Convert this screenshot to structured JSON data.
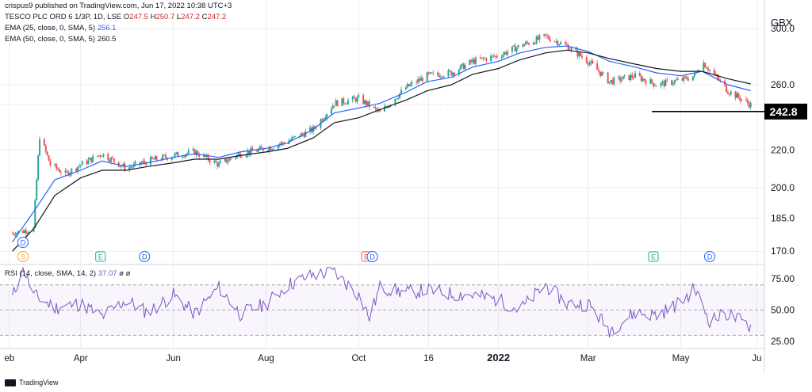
{
  "header": {
    "publish_line": "crispus9 published on TradingView.com, Jun 17, 2022 10:38 UTC+3",
    "symbol": "TESCO PLC ORD 6 1/3P, 1D, LSE",
    "ohlc": {
      "o_label": "O",
      "o": "247.5",
      "h_label": "H",
      "h": "250.7",
      "l_label": "L",
      "l": "247.2",
      "c_label": "C",
      "c": "247.2"
    },
    "ema25_label": "EMA (25, close, 0, SMA, 5)",
    "ema25_value": "256.1",
    "ema50_label": "EMA (50, close, 0, SMA, 5)",
    "ema50_value": "260.5",
    "rsi_label": "RSI (14, close, SMA, 14, 2)",
    "rsi_value": "37.07",
    "rsi_extra": "ø ø"
  },
  "currency": "GBX",
  "watermark": "TradingView",
  "colors": {
    "up": "#26a69a",
    "down": "#ef5350",
    "ema25": "#2962ff",
    "ema50": "#131722",
    "rsi": "#7e57c2",
    "grid": "#e0e3eb",
    "support": "#000000"
  },
  "events": {
    "split_label": "S",
    "earnings_label": "E",
    "dividend_label": "D"
  },
  "chart_data": [
    {
      "type": "line",
      "title": "TESCO PLC ORD 6 1/3P, 1D, LSE",
      "xlabel": "",
      "ylabel": "GBX",
      "ylim": [
        165,
        305
      ],
      "y_scale": "log",
      "y_ticks": [
        "300.0",
        "260.0",
        "220.0",
        "200.0",
        "185.0",
        "170.0"
      ],
      "x_ticks": [
        "eb",
        "Apr",
        "Jun",
        "Aug",
        "Oct",
        "16",
        "2022",
        "Mar",
        "May",
        "Ju"
      ],
      "price_line_label": "242.8",
      "series": [
        {
          "kind": "price",
          "x": [
            "2021-02-15",
            "2021-03-01",
            "2021-03-05",
            "2021-03-12",
            "2021-03-22",
            "2021-04-01",
            "2021-04-15",
            "2021-05-01",
            "2021-05-15",
            "2021-06-01",
            "2021-06-15",
            "2021-07-01",
            "2021-07-15",
            "2021-08-01",
            "2021-08-15",
            "2021-09-01",
            "2021-09-15",
            "2021-10-01",
            "2021-10-15",
            "2021-11-01",
            "2021-11-15",
            "2021-12-01",
            "2021-12-15",
            "2022-01-01",
            "2022-01-15",
            "2022-02-01",
            "2022-02-15",
            "2022-03-01",
            "2022-03-15",
            "2022-04-01",
            "2022-04-15",
            "2022-05-01",
            "2022-05-10",
            "2022-05-15",
            "2022-06-01",
            "2022-06-16"
          ],
          "y": [
            178,
            180,
            228,
            212,
            207,
            212,
            218,
            210,
            214,
            217,
            219,
            212,
            218,
            221,
            225,
            232,
            248,
            251,
            242,
            258,
            266,
            268,
            276,
            280,
            287,
            294,
            287,
            276,
            262,
            266,
            260,
            263,
            266,
            276,
            256,
            247
          ]
        },
        {
          "kind": "ema",
          "name": "EMA (25, close, 0, SMA, 5)",
          "x": [
            "2021-02-15",
            "2021-03-01",
            "2021-03-15",
            "2021-04-01",
            "2021-04-15",
            "2021-05-01",
            "2021-05-15",
            "2021-06-01",
            "2021-06-15",
            "2021-07-01",
            "2021-07-15",
            "2021-08-01",
            "2021-08-15",
            "2021-09-01",
            "2021-09-15",
            "2021-10-01",
            "2021-10-15",
            "2021-11-01",
            "2021-11-15",
            "2021-12-01",
            "2021-12-15",
            "2022-01-01",
            "2022-01-15",
            "2022-02-01",
            "2022-02-15",
            "2022-03-01",
            "2022-03-15",
            "2022-04-01",
            "2022-04-15",
            "2022-05-01",
            "2022-05-15",
            "2022-06-01",
            "2022-06-16"
          ],
          "y": [
            174,
            188,
            204,
            209,
            214,
            211,
            213,
            216,
            218,
            216,
            219,
            221,
            224,
            232,
            242,
            245,
            248,
            255,
            262,
            265,
            272,
            276,
            282,
            286,
            287,
            283,
            276,
            272,
            268,
            266,
            269,
            260,
            256.1
          ]
        },
        {
          "kind": "ema",
          "name": "EMA (50, close, 0, SMA, 5)",
          "x": [
            "2021-02-15",
            "2021-03-01",
            "2021-03-15",
            "2021-04-01",
            "2021-04-15",
            "2021-05-01",
            "2021-05-15",
            "2021-06-01",
            "2021-06-15",
            "2021-07-01",
            "2021-07-15",
            "2021-08-01",
            "2021-08-15",
            "2021-09-01",
            "2021-09-15",
            "2021-10-01",
            "2021-10-15",
            "2021-11-01",
            "2021-11-15",
            "2021-12-01",
            "2021-12-15",
            "2022-01-01",
            "2022-01-15",
            "2022-02-01",
            "2022-02-15",
            "2022-03-01",
            "2022-03-15",
            "2022-04-01",
            "2022-04-15",
            "2022-05-01",
            "2022-05-15",
            "2022-06-01",
            "2022-06-16"
          ],
          "y": [
            170,
            180,
            196,
            205,
            209,
            209,
            211,
            213,
            215,
            215,
            217,
            219,
            221,
            227,
            236,
            239,
            244,
            250,
            256,
            260,
            267,
            271,
            277,
            282,
            284,
            282,
            278,
            274,
            271,
            269,
            269,
            264,
            260.5
          ]
        }
      ],
      "support_line": {
        "value": 242.8,
        "from": "2022-04-12",
        "to": "2022-06-16"
      },
      "events": [
        {
          "type": "S",
          "x": "2021-02-22"
        },
        {
          "type": "D",
          "x": "2021-02-22"
        },
        {
          "type": "E",
          "x": "2021-04-14"
        },
        {
          "type": "D",
          "x": "2021-05-13"
        },
        {
          "type": "E",
          "x": "2021-10-06"
        },
        {
          "type": "D",
          "x": "2021-10-10"
        },
        {
          "type": "E",
          "x": "2022-04-13"
        },
        {
          "type": "D",
          "x": "2022-05-20"
        }
      ]
    },
    {
      "type": "line",
      "title": "RSI (14, close, SMA, 14, 2)",
      "ylim": [
        22,
        85
      ],
      "y_ticks": [
        "75.00",
        "50.00",
        "25.00"
      ],
      "bands": [
        70,
        50,
        30
      ],
      "series": [
        {
          "name": "RSI",
          "x": [
            "2021-02-15",
            "2021-02-22",
            "2021-03-01",
            "2021-03-15",
            "2021-04-01",
            "2021-04-15",
            "2021-05-01",
            "2021-05-15",
            "2021-06-01",
            "2021-06-15",
            "2021-07-01",
            "2021-07-15",
            "2021-08-01",
            "2021-08-15",
            "2021-09-01",
            "2021-09-15",
            "2021-10-01",
            "2021-10-08",
            "2021-10-15",
            "2021-11-01",
            "2021-11-15",
            "2021-12-01",
            "2021-12-15",
            "2022-01-01",
            "2022-01-15",
            "2022-02-01",
            "2022-02-15",
            "2022-03-01",
            "2022-03-15",
            "2022-04-01",
            "2022-04-15",
            "2022-05-01",
            "2022-05-10",
            "2022-05-20",
            "2022-06-01",
            "2022-06-16"
          ],
          "y": [
            60,
            84,
            62,
            52,
            55,
            45,
            58,
            48,
            62,
            47,
            68,
            47,
            55,
            70,
            78,
            80,
            62,
            44,
            68,
            64,
            66,
            63,
            62,
            58,
            50,
            70,
            55,
            55,
            34,
            48,
            46,
            56,
            67,
            42,
            47,
            37.07
          ]
        }
      ]
    }
  ]
}
